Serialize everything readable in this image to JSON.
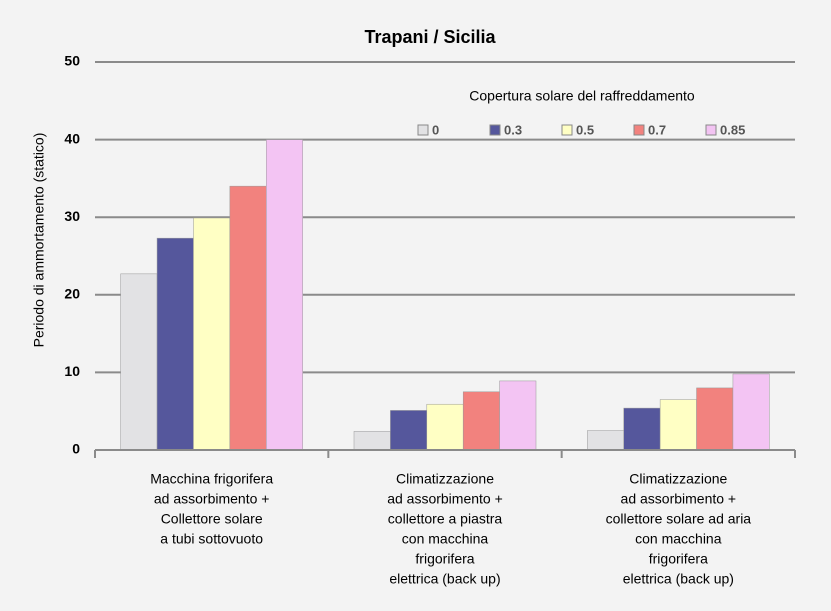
{
  "chart_data": {
    "type": "bar",
    "title": "Trapani / Sicilia",
    "y_label": "Periodo di ammortamento (statico)",
    "legend_title": "Copertura solare del raffreddamento",
    "categories": [
      [
        "Macchina frigorifera",
        "ad assorbimento +",
        "Collettore solare",
        "a tubi sottovuoto"
      ],
      [
        "Climatizzazione",
        "ad assorbimento +",
        "collettore a piastra",
        "con macchina",
        "frigorifera",
        "elettrica (back up)"
      ],
      [
        "Climatizzazione",
        "ad assorbimento +",
        "collettore solare ad aria",
        "con macchina",
        "frigorifera",
        "elettrica (back up)"
      ]
    ],
    "series": [
      {
        "name": "0",
        "color": "#e2e2e4",
        "values": [
          22.7,
          2.4,
          2.5
        ]
      },
      {
        "name": "0.3",
        "color": "#55579c",
        "values": [
          27.3,
          5.1,
          5.4
        ]
      },
      {
        "name": "0.5",
        "color": "#ffffc4",
        "values": [
          29.9,
          5.9,
          6.5
        ]
      },
      {
        "name": "0.7",
        "color": "#f2827e",
        "values": [
          34,
          7.5,
          8.0
        ]
      },
      {
        "name": "0.85",
        "color": "#f3c4f3",
        "values": [
          40,
          8.9,
          9.8
        ]
      }
    ],
    "ylim": [
      0,
      50
    ],
    "yticks": [
      0,
      10,
      20,
      30,
      40,
      50
    ],
    "grid": true,
    "legend": "upper right"
  }
}
